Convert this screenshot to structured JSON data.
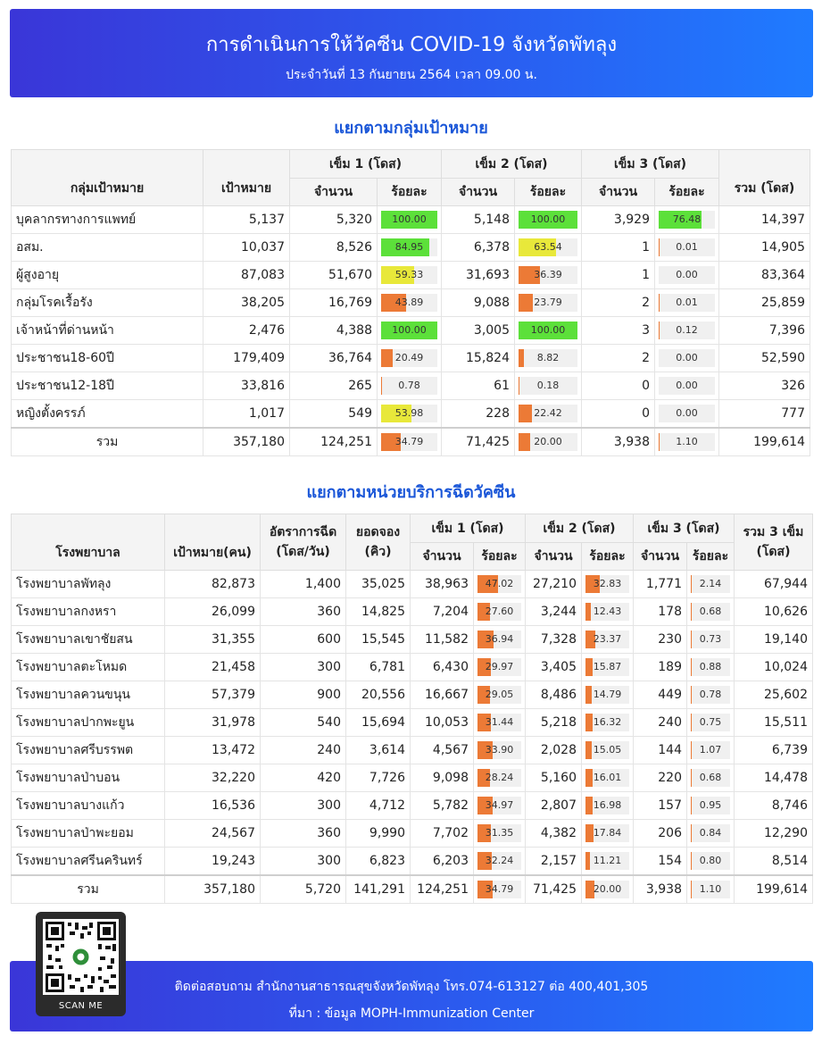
{
  "header": {
    "title": "การดำเนินการให้วัคซีน COVID-19 จังหวัดพัทลุง",
    "subtitle": "ประจำวันที่ 13 กันยายน 2564 เวลา 09.00 น."
  },
  "section1": {
    "title": "แยกตามกลุ่มเป้าหมาย",
    "headers": {
      "group": "กลุ่มเป้าหมาย",
      "target": "เป้าหมาย",
      "dose1": "เข็ม 1 (โดส)",
      "dose2": "เข็ม 2 (โดส)",
      "dose3": "เข็ม 3 (โดส)",
      "count": "จำนวน",
      "percent": "ร้อยละ",
      "total": "รวม (โดส)"
    },
    "rows": [
      {
        "name": "บุคลากรทางการแพทย์",
        "target": "5,137",
        "d1": "5,320",
        "p1": "100.00",
        "d2": "5,148",
        "p2": "100.00",
        "d3": "3,929",
        "p3": "76.48",
        "total": "14,397"
      },
      {
        "name": "อสม.",
        "target": "10,037",
        "d1": "8,526",
        "p1": "84.95",
        "d2": "6,378",
        "p2": "63.54",
        "d3": "1",
        "p3": "0.01",
        "total": "14,905"
      },
      {
        "name": "ผู้สูงอายุ",
        "target": "87,083",
        "d1": "51,670",
        "p1": "59.33",
        "d2": "31,693",
        "p2": "36.39",
        "d3": "1",
        "p3": "0.00",
        "total": "83,364"
      },
      {
        "name": "กลุ่มโรคเรื้อรัง",
        "target": "38,205",
        "d1": "16,769",
        "p1": "43.89",
        "d2": "9,088",
        "p2": "23.79",
        "d3": "2",
        "p3": "0.01",
        "total": "25,859"
      },
      {
        "name": "เจ้าหน้าที่ด่านหน้า",
        "target": "2,476",
        "d1": "4,388",
        "p1": "100.00",
        "d2": "3,005",
        "p2": "100.00",
        "d3": "3",
        "p3": "0.12",
        "total": "7,396"
      },
      {
        "name": "ประชาชน18-60ปี",
        "target": "179,409",
        "d1": "36,764",
        "p1": "20.49",
        "d2": "15,824",
        "p2": "8.82",
        "d3": "2",
        "p3": "0.00",
        "total": "52,590"
      },
      {
        "name": "ประชาชน12-18ปี",
        "target": "33,816",
        "d1": "265",
        "p1": "0.78",
        "d2": "61",
        "p2": "0.18",
        "d3": "0",
        "p3": "0.00",
        "total": "326"
      },
      {
        "name": "หญิงตั้งครรภ์",
        "target": "1,017",
        "d1": "549",
        "p1": "53.98",
        "d2": "228",
        "p2": "22.42",
        "d3": "0",
        "p3": "0.00",
        "total": "777"
      }
    ],
    "total_row": {
      "name": "รวม",
      "target": "357,180",
      "d1": "124,251",
      "p1": "34.79",
      "d2": "71,425",
      "p2": "20.00",
      "d3": "3,938",
      "p3": "1.10",
      "total": "199,614"
    }
  },
  "section2": {
    "title": "แยกตามหน่วยบริการฉีดวัคซีน",
    "headers": {
      "hospital": "โรงพยาบาล",
      "target": "เป้าหมาย(คน)",
      "rate": "อัตราการฉีด (โดส/วัน)",
      "booking": "ยอดจอง (คิว)",
      "dose1": "เข็ม 1 (โดส)",
      "dose2": "เข็ม 2 (โดส)",
      "dose3": "เข็ม 3 (โดส)",
      "count": "จำนวน",
      "percent": "ร้อยละ",
      "total": "รวม 3 เข็ม (โดส)"
    },
    "rows": [
      {
        "name": "โรงพยาบาลพัทลุง",
        "target": "82,873",
        "rate": "1,400",
        "booking": "35,025",
        "d1": "38,963",
        "p1": "47.02",
        "d2": "27,210",
        "p2": "32.83",
        "d3": "1,771",
        "p3": "2.14",
        "total": "67,944"
      },
      {
        "name": "โรงพยาบาลกงหรา",
        "target": "26,099",
        "rate": "360",
        "booking": "14,825",
        "d1": "7,204",
        "p1": "27.60",
        "d2": "3,244",
        "p2": "12.43",
        "d3": "178",
        "p3": "0.68",
        "total": "10,626"
      },
      {
        "name": "โรงพยาบาลเขาชัยสน",
        "target": "31,355",
        "rate": "600",
        "booking": "15,545",
        "d1": "11,582",
        "p1": "36.94",
        "d2": "7,328",
        "p2": "23.37",
        "d3": "230",
        "p3": "0.73",
        "total": "19,140"
      },
      {
        "name": "โรงพยาบาลตะโหมด",
        "target": "21,458",
        "rate": "300",
        "booking": "6,781",
        "d1": "6,430",
        "p1": "29.97",
        "d2": "3,405",
        "p2": "15.87",
        "d3": "189",
        "p3": "0.88",
        "total": "10,024"
      },
      {
        "name": "โรงพยาบาลควนขนุน",
        "target": "57,379",
        "rate": "900",
        "booking": "20,556",
        "d1": "16,667",
        "p1": "29.05",
        "d2": "8,486",
        "p2": "14.79",
        "d3": "449",
        "p3": "0.78",
        "total": "25,602"
      },
      {
        "name": "โรงพยาบาลปากพะยูน",
        "target": "31,978",
        "rate": "540",
        "booking": "15,694",
        "d1": "10,053",
        "p1": "31.44",
        "d2": "5,218",
        "p2": "16.32",
        "d3": "240",
        "p3": "0.75",
        "total": "15,511"
      },
      {
        "name": "โรงพยาบาลศรีบรรพต",
        "target": "13,472",
        "rate": "240",
        "booking": "3,614",
        "d1": "4,567",
        "p1": "33.90",
        "d2": "2,028",
        "p2": "15.05",
        "d3": "144",
        "p3": "1.07",
        "total": "6,739"
      },
      {
        "name": "โรงพยาบาลป่าบอน",
        "target": "32,220",
        "rate": "420",
        "booking": "7,726",
        "d1": "9,098",
        "p1": "28.24",
        "d2": "5,160",
        "p2": "16.01",
        "d3": "220",
        "p3": "0.68",
        "total": "14,478"
      },
      {
        "name": "โรงพยาบาลบางแก้ว",
        "target": "16,536",
        "rate": "300",
        "booking": "4,712",
        "d1": "5,782",
        "p1": "34.97",
        "d2": "2,807",
        "p2": "16.98",
        "d3": "157",
        "p3": "0.95",
        "total": "8,746"
      },
      {
        "name": "โรงพยาบาลป่าพะยอม",
        "target": "24,567",
        "rate": "360",
        "booking": "9,990",
        "d1": "7,702",
        "p1": "31.35",
        "d2": "4,382",
        "p2": "17.84",
        "d3": "206",
        "p3": "0.84",
        "total": "12,290"
      },
      {
        "name": "โรงพยาบาลศรีนครินทร์",
        "target": "19,243",
        "rate": "300",
        "booking": "6,823",
        "d1": "6,203",
        "p1": "32.24",
        "d2": "2,157",
        "p2": "11.21",
        "d3": "154",
        "p3": "0.80",
        "total": "8,514"
      }
    ],
    "total_row": {
      "name": "รวม",
      "target": "357,180",
      "rate": "5,720",
      "booking": "141,291",
      "d1": "124,251",
      "p1": "34.79",
      "d2": "71,425",
      "p2": "20.00",
      "d3": "3,938",
      "p3": "1.10",
      "total": "199,614"
    }
  },
  "footer": {
    "contact": "ติดต่อสอบถาม สำนักงานสาธารณสุขจังหวัดพัทลุง โทร.074-613127 ต่อ 400,401,305",
    "source": "ที่มา : ข้อมูล MOPH-Immunization Center",
    "qr_label": "SCAN ME"
  },
  "colors": {
    "header_gradient_start": "#3a36d8",
    "header_gradient_end": "#1f7bff",
    "title_blue": "#1b57d8",
    "bar_green": "#5ce03a",
    "bar_yellow": "#e8e83a",
    "bar_orange": "#ec7a36"
  }
}
